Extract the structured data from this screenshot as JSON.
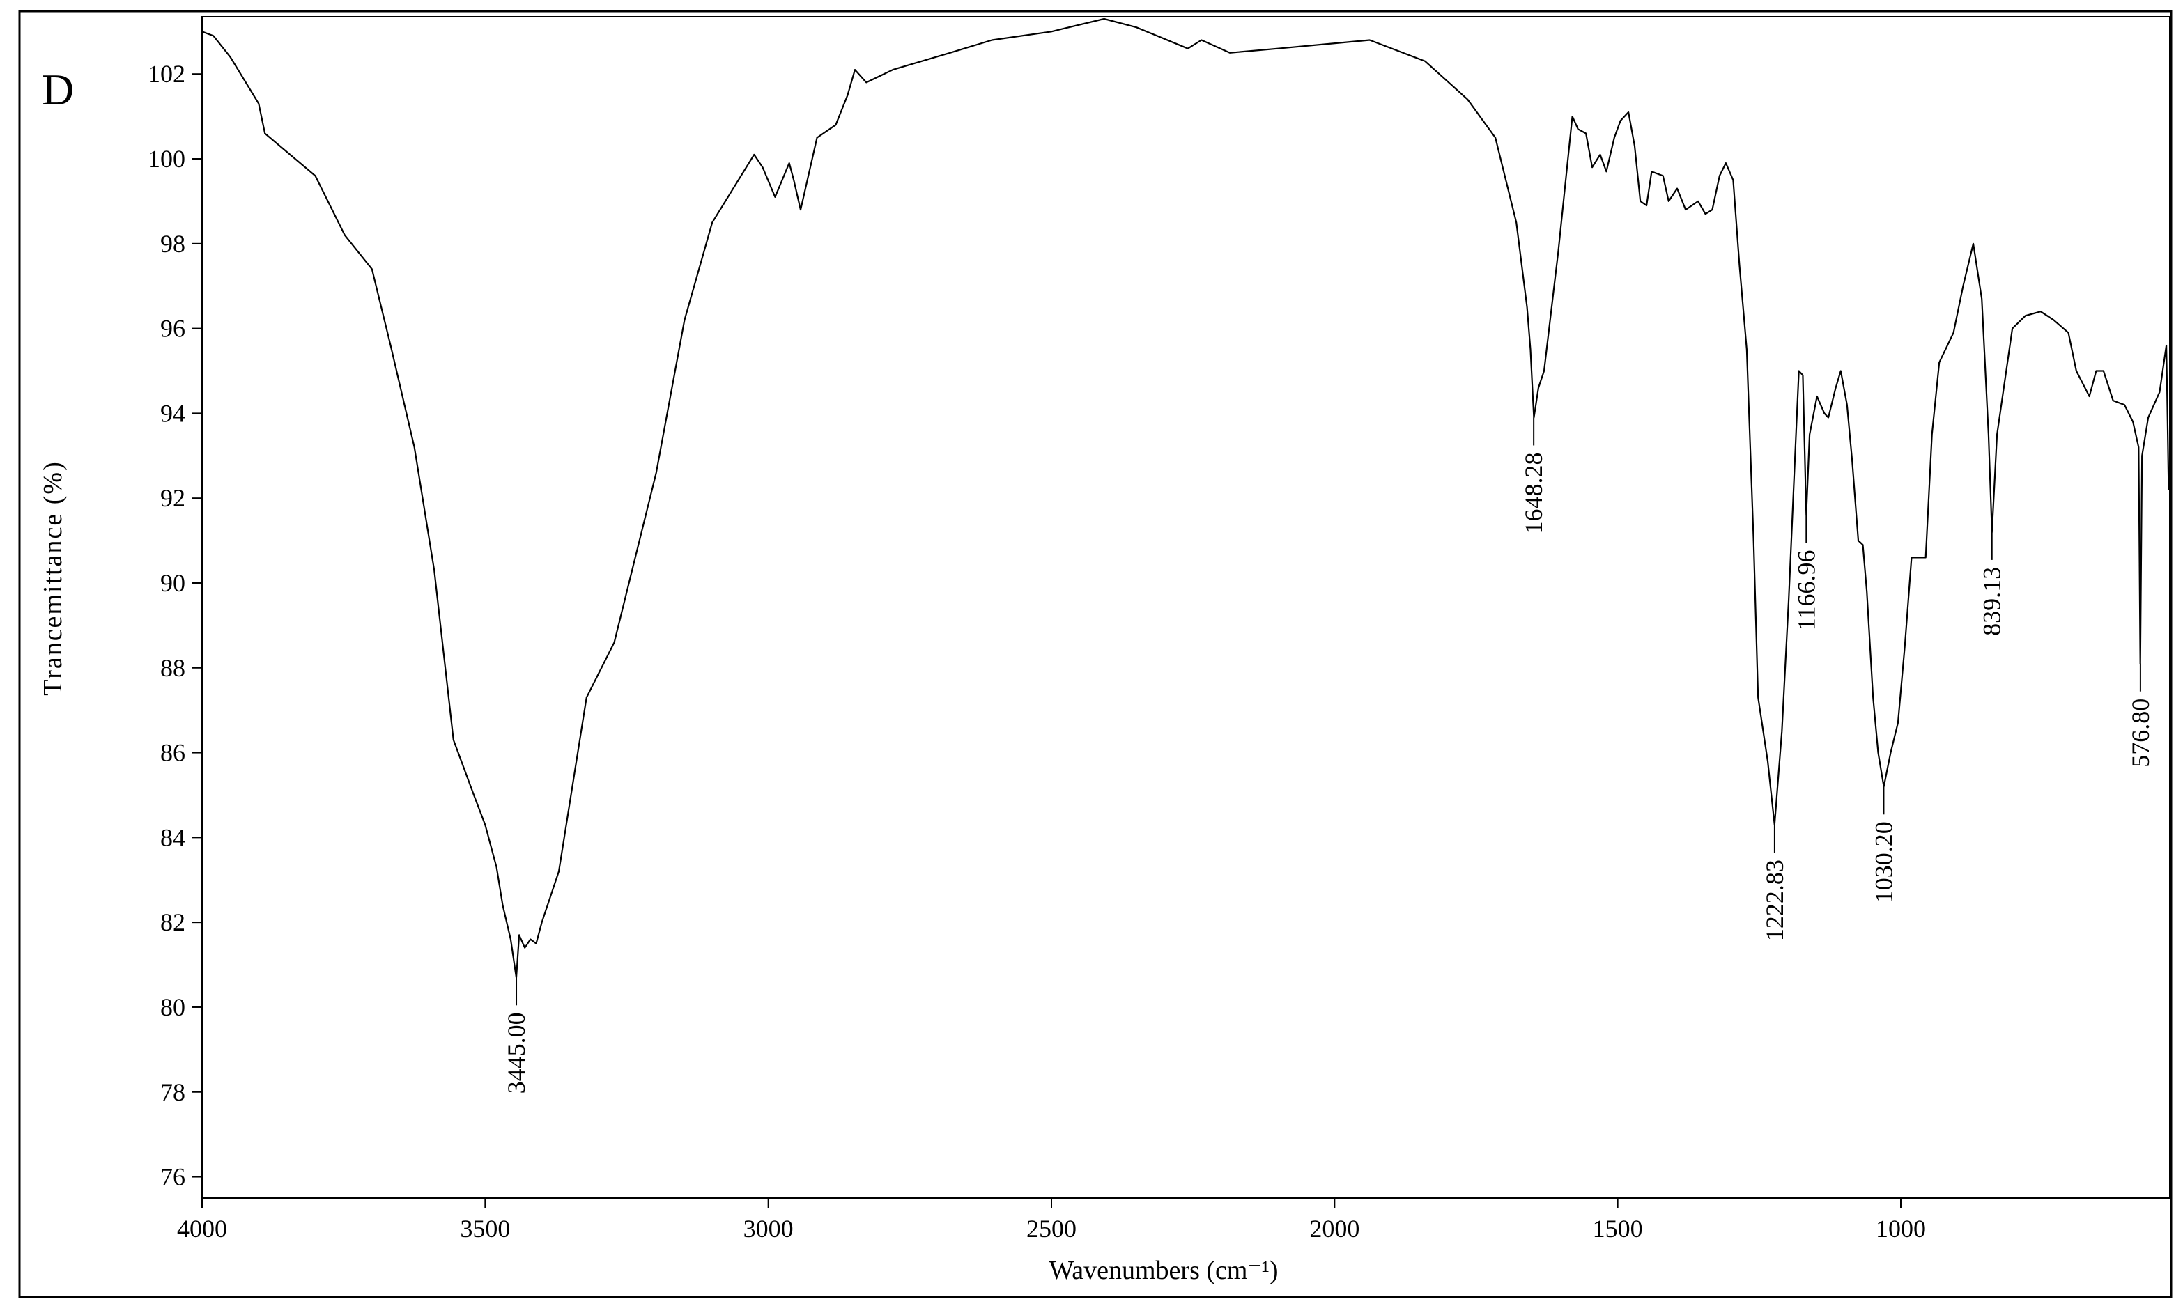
{
  "chart_data": {
    "type": "line",
    "title": "D",
    "x_label": "Wavenumbers (cm⁻¹)",
    "y_label": "Trancemittance (%)",
    "color": "#000000",
    "xlim": [
      4000,
      525
    ],
    "ylim": [
      75.5,
      103.35
    ],
    "xticks": [
      4000,
      3500,
      3000,
      2500,
      2000,
      1500,
      1000
    ],
    "yticks": [
      76,
      78,
      80,
      82,
      84,
      86,
      88,
      90,
      92,
      94,
      96,
      98,
      100,
      102
    ],
    "x": [
      4000,
      3980,
      3950,
      3900,
      3889,
      3800,
      3748,
      3700,
      3667,
      3625,
      3590,
      3556,
      3520,
      3500,
      3480,
      3469,
      3455,
      3445,
      3440,
      3430,
      3420,
      3410,
      3400,
      3370,
      3321,
      3272,
      3198,
      3148,
      3099,
      3025,
      3010,
      2988,
      2963,
      2955,
      2943,
      2914,
      2881,
      2860,
      2847,
      2827,
      2780,
      2679,
      2605,
      2500,
      2407,
      2350,
      2259,
      2235,
      2185,
      2100,
      1938,
      1840,
      1765,
      1716,
      1679,
      1660,
      1654,
      1648,
      1640,
      1630,
      1605,
      1580,
      1570,
      1556,
      1545,
      1531,
      1520,
      1506,
      1495,
      1481,
      1470,
      1460,
      1449,
      1440,
      1420,
      1410,
      1395,
      1380,
      1358,
      1345,
      1333,
      1320,
      1309,
      1296,
      1285,
      1272,
      1260,
      1252,
      1235,
      1223,
      1210,
      1198,
      1185,
      1180,
      1173,
      1167,
      1161,
      1148,
      1135,
      1128,
      1115,
      1106,
      1095,
      1086,
      1075,
      1067,
      1060,
      1049,
      1040,
      1030,
      1018,
      1005,
      993,
      981,
      956,
      945,
      932,
      907,
      890,
      872,
      857,
      845,
      839,
      830,
      803,
      780,
      753,
      730,
      704,
      690,
      667,
      655,
      642,
      625,
      605,
      590,
      580,
      577,
      574,
      563,
      543,
      531,
      527
    ],
    "values": [
      103.0,
      102.9,
      102.4,
      101.3,
      100.6,
      99.6,
      98.2,
      97.4,
      95.6,
      93.2,
      90.3,
      86.3,
      85.0,
      84.3,
      83.3,
      82.4,
      81.6,
      80.7,
      81.7,
      81.4,
      81.6,
      81.5,
      82.0,
      83.2,
      87.3,
      88.6,
      92.6,
      96.2,
      98.5,
      100.1,
      99.8,
      99.1,
      99.9,
      99.5,
      98.8,
      100.5,
      100.8,
      101.5,
      102.1,
      101.8,
      102.1,
      102.5,
      102.8,
      103.0,
      103.3,
      103.1,
      102.6,
      102.8,
      102.5,
      102.6,
      102.8,
      102.3,
      101.4,
      100.5,
      98.5,
      96.5,
      95.5,
      93.9,
      94.6,
      95.0,
      97.8,
      101.0,
      100.7,
      100.6,
      99.8,
      100.1,
      99.7,
      100.5,
      100.9,
      101.1,
      100.3,
      99.0,
      98.9,
      99.7,
      99.6,
      99.0,
      99.3,
      98.8,
      99.0,
      98.7,
      98.8,
      99.6,
      99.9,
      99.5,
      97.5,
      95.5,
      91.0,
      87.3,
      85.8,
      84.3,
      86.5,
      89.6,
      93.5,
      95.0,
      94.9,
      91.6,
      93.5,
      94.4,
      94.0,
      93.9,
      94.6,
      95.0,
      94.2,
      92.9,
      91.0,
      90.9,
      89.8,
      87.3,
      86.0,
      85.2,
      86.0,
      86.7,
      88.5,
      90.6,
      90.6,
      93.5,
      95.2,
      95.9,
      97.0,
      98.0,
      96.7,
      93.5,
      91.2,
      93.5,
      96.0,
      96.3,
      96.4,
      96.2,
      95.9,
      95.0,
      94.4,
      95.0,
      95.0,
      94.3,
      94.2,
      93.8,
      93.2,
      88.1,
      93.0,
      93.9,
      94.5,
      95.6,
      92.2
    ],
    "peaks": [
      {
        "x": 3445.0,
        "y": 80.7,
        "label": "3445.00"
      },
      {
        "x": 1648.28,
        "y": 93.9,
        "label": "1648.28"
      },
      {
        "x": 1222.83,
        "y": 84.3,
        "label": "1222.83"
      },
      {
        "x": 1166.96,
        "y": 91.6,
        "label": "1166.96"
      },
      {
        "x": 1030.2,
        "y": 85.2,
        "label": "1030.20"
      },
      {
        "x": 839.13,
        "y": 91.2,
        "label": "839.13"
      },
      {
        "x": 576.8,
        "y": 88.1,
        "label": "576.80"
      }
    ]
  }
}
